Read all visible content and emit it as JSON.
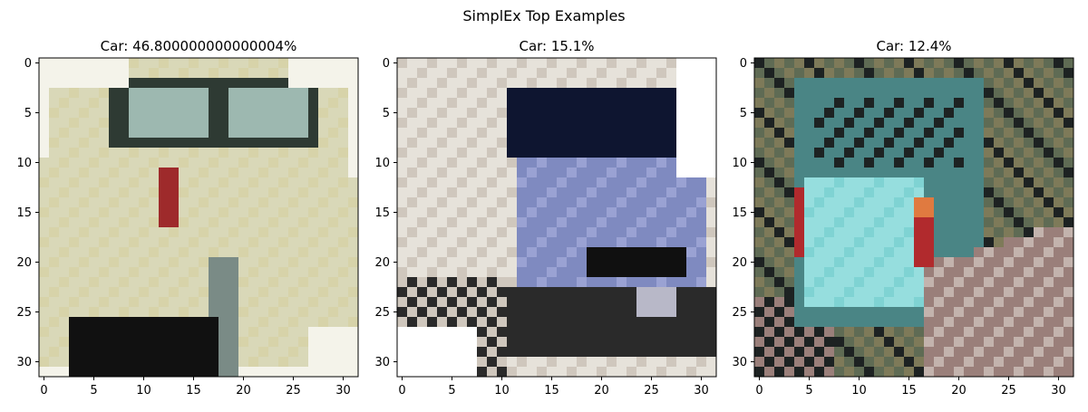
{
  "figure_title": "SimplEx Top Examples",
  "chart_data": [
    {
      "type": "heatmap",
      "title": "Car: 46.800000000000004%",
      "xlim": [
        -0.5,
        31.5
      ],
      "ylim": [
        31.5,
        -0.5
      ],
      "x_ticks": [
        "0",
        "5",
        "10",
        "15",
        "20",
        "25",
        "30"
      ],
      "y_ticks": [
        "0",
        "5",
        "10",
        "15",
        "20",
        "25",
        "30"
      ],
      "image": "32x32 RGB thumbnail of a cream-colored car",
      "palette": [
        "#d9d8b8",
        "#ece9cf",
        "#9db8b0",
        "#2e3a33",
        "#7a8b86",
        "#9e2a2b",
        "#d7d3a9",
        "#f4f3ea",
        "#111111"
      ]
    },
    {
      "type": "heatmap",
      "title": "Car: 15.1%",
      "xlim": [
        -0.5,
        31.5
      ],
      "ylim": [
        31.5,
        -0.5
      ],
      "x_ticks": [
        "0",
        "5",
        "10",
        "15",
        "20",
        "25",
        "30"
      ],
      "y_ticks": [
        "0",
        "5",
        "10",
        "15",
        "20",
        "25",
        "30"
      ],
      "image": "32x32 RGB thumbnail of a silver/blue van",
      "palette": [
        "#e6e2da",
        "#cfc7bd",
        "#0e1530",
        "#7f8ac0",
        "#9aa2d3",
        "#b8b8c8",
        "#2a2a2a",
        "#ffffff",
        "#101010"
      ]
    },
    {
      "type": "heatmap",
      "title": "Car: 12.4%",
      "xlim": [
        -0.5,
        31.5
      ],
      "ylim": [
        31.5,
        -0.5
      ],
      "x_ticks": [
        "0",
        "5",
        "10",
        "15",
        "20",
        "25",
        "30"
      ],
      "y_ticks": [
        "0",
        "5",
        "10",
        "15",
        "20",
        "25",
        "30"
      ],
      "image": "32x32 RGB thumbnail of a teal car parked by a curb",
      "palette": [
        "#7e7a59",
        "#5f6b54",
        "#4a8585",
        "#7fd3d3",
        "#96dede",
        "#b12a2d",
        "#e07a40",
        "#9a7f7a",
        "#c3b3ad",
        "#1d2222"
      ]
    }
  ]
}
